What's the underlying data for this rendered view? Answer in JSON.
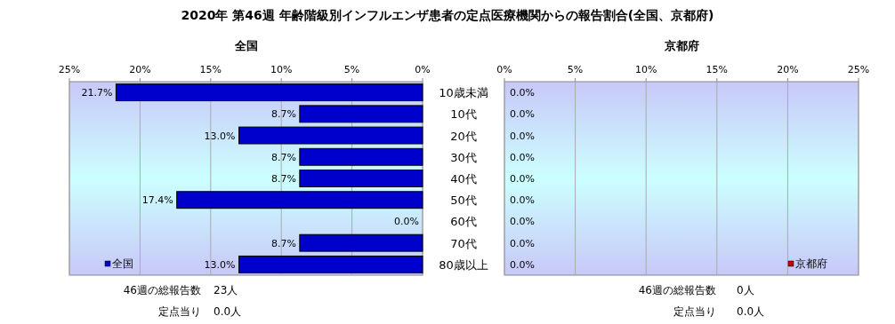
{
  "chart_data": [
    {
      "type": "bar",
      "orientation": "horizontal",
      "title": "2020年 第46週 年齢階級別インフルエンザ患者の定点医療機関からの報告割合(全国、京都府)",
      "subtitle": "全国",
      "categories": [
        "10歳未満",
        "10代",
        "20代",
        "30代",
        "40代",
        "50代",
        "60代",
        "70代",
        "80歳以上"
      ],
      "series": [
        {
          "name": "全国",
          "color": "#0000cc",
          "values": [
            21.7,
            8.7,
            13.0,
            8.7,
            8.7,
            17.4,
            0.0,
            8.7,
            13.0
          ],
          "value_labels": [
            "21.7%",
            "8.7%",
            "13.0%",
            "8.7%",
            "8.7%",
            "17.4%",
            "0.0%",
            "8.7%",
            "13.0%"
          ]
        }
      ],
      "xlim": [
        25,
        0
      ],
      "xticks": [
        {
          "value": 25,
          "label": "25%"
        },
        {
          "value": 20,
          "label": "20%"
        },
        {
          "value": 15,
          "label": "15%"
        },
        {
          "value": 10,
          "label": "10%"
        },
        {
          "value": 5,
          "label": "5%"
        },
        {
          "value": 0,
          "label": "0%"
        }
      ],
      "grid": "x",
      "legend": "bottom left",
      "annotations": [
        "46週の総報告数",
        "23人",
        "定点当り",
        "0.0人"
      ]
    },
    {
      "type": "bar",
      "orientation": "horizontal",
      "subtitle": "京都府",
      "categories": [
        null,
        null,
        null,
        null,
        null,
        null,
        null,
        null,
        null
      ],
      "series": [
        {
          "name": "京都府",
          "color": "#cc0000",
          "values": [
            0.0,
            0.0,
            0.0,
            0.0,
            0.0,
            0.0,
            0.0,
            0.0,
            0.0
          ],
          "value_labels": [
            "0.0%",
            "0.0%",
            "0.0%",
            "0.0%",
            "0.0%",
            "0.0%",
            "0.0%",
            "0.0%",
            "0.0%"
          ]
        }
      ],
      "xlim": [
        0,
        25
      ],
      "xticks": [
        {
          "value": 0,
          "label": "0%"
        },
        {
          "value": 5,
          "label": "5%"
        },
        {
          "value": 10,
          "label": "10%"
        },
        {
          "value": 15,
          "label": "15%"
        },
        {
          "value": 20,
          "label": "20%"
        },
        {
          "value": 25,
          "label": "25%"
        }
      ],
      "grid": "x",
      "legend": "bottom right",
      "annotations": [
        "46週の総報告数",
        "0人",
        "定点当り",
        "0.0人"
      ]
    }
  ]
}
